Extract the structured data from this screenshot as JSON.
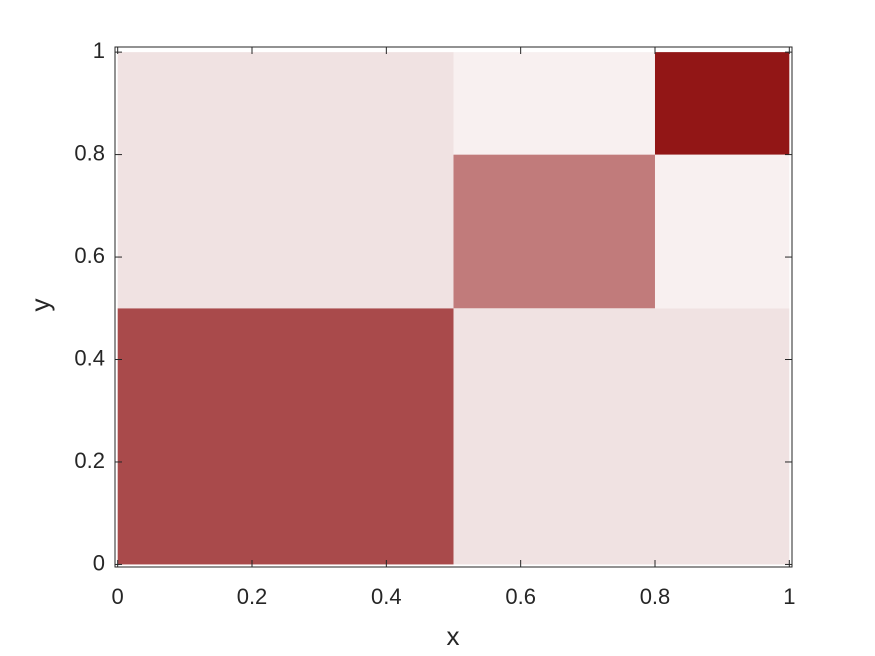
{
  "chart_data": {
    "type": "rect",
    "xlabel": "x",
    "ylabel": "y",
    "xlim": [
      -0.004,
      1.004
    ],
    "ylim": [
      -0.005,
      1.01
    ],
    "xticks": [
      0,
      0.2,
      0.4,
      0.6,
      0.8,
      1
    ],
    "yticks": [
      0,
      0.2,
      0.4,
      0.6,
      0.8,
      1
    ],
    "rects": [
      {
        "x": [
          0,
          0.5
        ],
        "y": [
          0,
          0.5
        ],
        "color": "#a94a4b"
      },
      {
        "x": [
          0,
          0.5
        ],
        "y": [
          0.5,
          1
        ],
        "color": "#f0e2e2"
      },
      {
        "x": [
          0.5,
          1
        ],
        "y": [
          0,
          0.5
        ],
        "color": "#f0e2e2"
      },
      {
        "x": [
          0.5,
          0.8
        ],
        "y": [
          0.5,
          0.8
        ],
        "color": "#c17b7b"
      },
      {
        "x": [
          0.5,
          0.8
        ],
        "y": [
          0.8,
          1
        ],
        "color": "#f8f0f0"
      },
      {
        "x": [
          0.8,
          1
        ],
        "y": [
          0.5,
          0.8
        ],
        "color": "#f8f0f0"
      },
      {
        "x": [
          0.8,
          1
        ],
        "y": [
          0.8,
          1
        ],
        "color": "#921616"
      }
    ]
  }
}
